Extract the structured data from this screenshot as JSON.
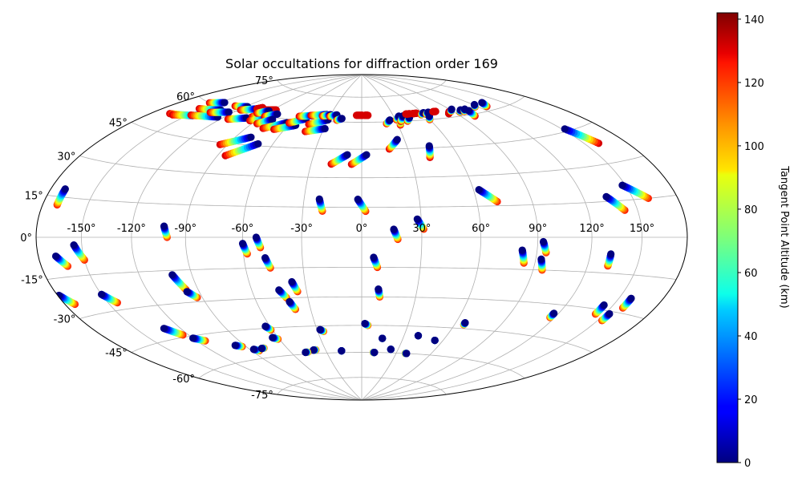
{
  "chart_data": {
    "type": "scatter",
    "projection": "hammer",
    "title": "Solar occultations for diffraction order 169",
    "grid": true,
    "lon_ticks": [
      -150,
      -120,
      -90,
      -60,
      -30,
      0,
      30,
      60,
      90,
      120,
      150
    ],
    "lon_tick_labels": [
      "-150°",
      "-120°",
      "-90°",
      "-60°",
      "-30°",
      "0°",
      "30°",
      "60°",
      "90°",
      "120°",
      "150°"
    ],
    "lat_ticks": [
      -75,
      -60,
      -45,
      -30,
      -15,
      0,
      15,
      30,
      45,
      60,
      75
    ],
    "lat_tick_labels": [
      "-75°",
      "-60°",
      "-45°",
      "-30°",
      "-15°",
      "0°",
      "15°",
      "30°",
      "45°",
      "60°",
      "75°"
    ],
    "colorbar": {
      "label": "Tangent Point Altitude (km)",
      "colormap": "jet",
      "range": [
        0,
        142
      ],
      "ticks": [
        0,
        20,
        40,
        60,
        80,
        100,
        120,
        140
      ],
      "tick_labels": [
        "0",
        "20",
        "40",
        "60",
        "80",
        "100",
        "120",
        "140"
      ]
    },
    "tracks_note_fields": [
      "lon_start",
      "lat_start",
      "lon_end",
      "lat_end",
      "alt_start",
      "alt_end"
    ],
    "tracks": [
      [
        -166,
        52,
        -146,
        54,
        130,
        0
      ],
      [
        -162,
        52,
        -140,
        55,
        130,
        0
      ],
      [
        -157,
        60,
        -146,
        62,
        130,
        0
      ],
      [
        -153,
        57,
        -134,
        59,
        130,
        0
      ],
      [
        -148,
        54,
        -125,
        56,
        130,
        0
      ],
      [
        -138,
        57,
        -124,
        59,
        130,
        0
      ],
      [
        -130,
        62,
        -118,
        63,
        130,
        0
      ],
      [
        -114,
        56,
        -101,
        58,
        130,
        0
      ],
      [
        -118,
        61,
        -106,
        63,
        130,
        0
      ],
      [
        -106,
        63,
        -103,
        64,
        130,
        130
      ],
      [
        -98,
        63,
        -87,
        64,
        130,
        130
      ],
      [
        -98,
        59,
        -89,
        62,
        130,
        0
      ],
      [
        -95,
        57,
        -85,
        60,
        130,
        0
      ],
      [
        -99,
        61,
        -92,
        63,
        130,
        0
      ],
      [
        -88,
        60,
        -80,
        62,
        130,
        0
      ],
      [
        -86,
        56,
        -78,
        59,
        130,
        0
      ],
      [
        -95,
        44,
        -79,
        49,
        130,
        0
      ],
      [
        -85,
        39,
        -70,
        46,
        130,
        0
      ],
      [
        -77,
        54,
        -63,
        58,
        130,
        0
      ],
      [
        -68,
        54,
        -54,
        57,
        130,
        0
      ],
      [
        -61,
        58,
        -50,
        61,
        130,
        0
      ],
      [
        -58,
        62,
        -46,
        63,
        130,
        0
      ],
      [
        -48,
        63,
        -34,
        64,
        130,
        0
      ],
      [
        -44,
        58,
        -30,
        61,
        130,
        0
      ],
      [
        -43,
        54,
        -29,
        56,
        130,
        0
      ],
      [
        -37,
        63,
        -30,
        64,
        130,
        0
      ],
      [
        -30,
        63,
        -24,
        64,
        130,
        0
      ],
      [
        -22,
        61,
        -18,
        62,
        130,
        0
      ],
      [
        -18,
        37,
        -9,
        42,
        130,
        0
      ],
      [
        -6,
        37,
        3,
        42,
        130,
        0
      ],
      [
        -5,
        64,
        1,
        64,
        130,
        130
      ],
      [
        3,
        64,
        6,
        64,
        130,
        130
      ],
      [
        21,
        59,
        25,
        61,
        130,
        0
      ],
      [
        31,
        61,
        35,
        63,
        130,
        0
      ],
      [
        18,
        45,
        25,
        50,
        130,
        0
      ],
      [
        32,
        58,
        36,
        62,
        130,
        0
      ],
      [
        34,
        60,
        39,
        63,
        130,
        0
      ],
      [
        40,
        60,
        44,
        62,
        130,
        0
      ],
      [
        43,
        64,
        47,
        64,
        130,
        130
      ],
      [
        50,
        64,
        54,
        64,
        130,
        130
      ],
      [
        57,
        63,
        61,
        64,
        130,
        0
      ],
      [
        62,
        63,
        66,
        64,
        130,
        0
      ],
      [
        60,
        60,
        63,
        62,
        130,
        0
      ],
      [
        71,
        64,
        74,
        64,
        130,
        130
      ],
      [
        83,
        62,
        86,
        63,
        130,
        130
      ],
      [
        88,
        63,
        92,
        64,
        130,
        0
      ],
      [
        95,
        62,
        99,
        63,
        130,
        0
      ],
      [
        100,
        62,
        104,
        63,
        130,
        0
      ],
      [
        102,
        59,
        105,
        62,
        130,
        0
      ],
      [
        117,
        63,
        121,
        64,
        130,
        0
      ],
      [
        128,
        62,
        132,
        64,
        130,
        0
      ],
      [
        42,
        40,
        45,
        46,
        130,
        0
      ],
      [
        160,
        38,
        152,
        46,
        130,
        0
      ],
      [
        -170,
        12,
        -170,
        18,
        120,
        0
      ],
      [
        -20,
        13,
        -22,
        19,
        120,
        0
      ],
      [
        2,
        13,
        -2,
        19,
        120,
        0
      ],
      [
        31,
        4,
        28,
        9,
        120,
        0
      ],
      [
        71,
        17,
        63,
        23,
        120,
        0
      ],
      [
        142,
        11,
        134,
        17,
        120,
        0
      ],
      [
        160,
        15,
        148,
        21,
        120,
        0
      ],
      [
        -162,
        -11,
        -168,
        -7,
        120,
        0
      ],
      [
        -150,
        -9,
        -155,
        -3,
        120,
        0
      ],
      [
        -100,
        0,
        -102,
        5,
        120,
        0
      ],
      [
        -51,
        -5,
        -53,
        0,
        120,
        0
      ],
      [
        -58,
        -8,
        -60,
        -3,
        120,
        0
      ],
      [
        -47,
        -15,
        -49,
        -10,
        120,
        0
      ],
      [
        18,
        -1,
        16,
        4,
        120,
        0
      ],
      [
        8,
        -15,
        6,
        -10,
        120,
        0
      ],
      [
        84,
        -12,
        82,
        -6,
        120,
        0
      ],
      [
        95,
        -7,
        93,
        -2,
        120,
        0
      ],
      [
        95,
        -15,
        93,
        -10,
        120,
        0
      ],
      [
        132,
        -12,
        132,
        -7,
        120,
        0
      ],
      [
        -173,
        -25,
        -179,
        -21,
        120,
        0
      ],
      [
        -144,
        -27,
        -150,
        -23,
        120,
        0
      ],
      [
        -97,
        -24,
        -101,
        -17,
        120,
        0
      ],
      [
        -93,
        -28,
        -97,
        -25,
        120,
        0
      ],
      [
        -35,
        -27,
        -37,
        -22,
        120,
        0
      ],
      [
        -42,
        -30,
        -45,
        -26,
        120,
        0
      ],
      [
        -39,
        -36,
        -41,
        -32,
        120,
        0
      ],
      [
        10,
        -30,
        9,
        -26,
        120,
        0
      ],
      [
        158,
        -28,
        158,
        -24,
        120,
        0
      ],
      [
        144,
        -32,
        144,
        -28,
        120,
        0
      ],
      [
        153,
        -34,
        153,
        -31,
        120,
        0
      ],
      [
        117,
        -36,
        117,
        -34,
        120,
        0
      ],
      [
        -124,
        -44,
        -131,
        -40,
        120,
        0
      ],
      [
        -114,
        -48,
        -120,
        -46,
        120,
        0
      ],
      [
        -61,
        -46,
        -63,
        -44,
        120,
        0
      ],
      [
        -61,
        -51,
        -64,
        -50,
        120,
        0
      ],
      [
        -26,
        -48,
        -28,
        -47,
        120,
        0
      ],
      [
        4,
        -45,
        2,
        -44,
        120,
        0
      ],
      [
        66,
        -43,
        66,
        -42,
        120,
        0
      ],
      [
        40,
        -50,
        40,
        -50,
        120,
        0
      ],
      [
        54,
        -52,
        54,
        -52,
        120,
        0
      ],
      [
        -93,
        -53,
        -97,
        -52,
        120,
        0
      ],
      [
        -84,
        -56,
        -87,
        -55,
        120,
        0
      ],
      [
        -78,
        -55,
        -80,
        -55,
        120,
        0
      ],
      [
        15,
        -52,
        15,
        -52,
        120,
        0
      ],
      [
        -38,
        -58,
        -40,
        -58,
        120,
        0
      ],
      [
        -46,
        -59,
        -48,
        -59,
        120,
        0
      ],
      [
        -17,
        -59,
        -17,
        -59,
        120,
        0
      ],
      [
        10,
        -60,
        11,
        -60,
        120,
        0
      ],
      [
        24,
        -58,
        24,
        -58,
        120,
        0
      ],
      [
        38,
        -60,
        39,
        -60,
        120,
        0
      ]
    ]
  }
}
